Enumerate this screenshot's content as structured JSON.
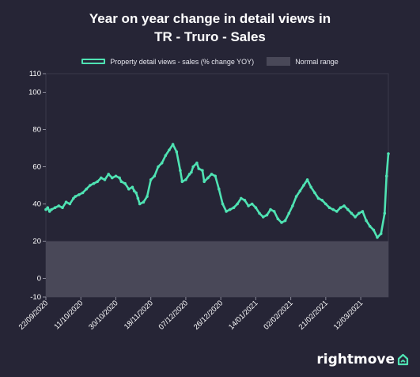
{
  "chart_data": {
    "type": "line",
    "title_lines": [
      "Year on year change in detail views in",
      "TR - Truro - Sales"
    ],
    "ylim": [
      -10,
      110
    ],
    "yticks": [
      110,
      100,
      80,
      60,
      40,
      20,
      0,
      -10
    ],
    "xlim": [
      "2020-09-22",
      "2021-03-27"
    ],
    "xtick_labels": [
      "22/09/2020",
      "11/10/2020",
      "30/10/2020",
      "18/11/2020",
      "07/12/2020",
      "26/12/2020",
      "14/01/2021",
      "02/02/2021",
      "21/02/2021",
      "12/03/2021"
    ],
    "xtick_dates": [
      "2020-09-22",
      "2020-10-11",
      "2020-10-30",
      "2020-11-18",
      "2020-12-07",
      "2020-12-26",
      "2021-01-14",
      "2021-02-02",
      "2021-02-21",
      "2021-03-12"
    ],
    "normal_range": [
      -10,
      20
    ],
    "legend_position": "top-center",
    "colors": {
      "line": "#4fe3b3",
      "range": "#494858",
      "background": "#262536"
    },
    "series": [
      {
        "name": "Property detail views - sales (% change YOY)",
        "x": [
          "2020-09-22",
          "2020-09-23",
          "2020-09-24",
          "2020-09-25",
          "2020-09-27",
          "2020-09-29",
          "2020-10-01",
          "2020-10-03",
          "2020-10-05",
          "2020-10-07",
          "2020-10-08",
          "2020-10-10",
          "2020-10-12",
          "2020-10-14",
          "2020-10-16",
          "2020-10-18",
          "2020-10-20",
          "2020-10-22",
          "2020-10-24",
          "2020-10-26",
          "2020-10-28",
          "2020-10-30",
          "2020-11-01",
          "2020-11-02",
          "2020-11-04",
          "2020-11-06",
          "2020-11-08",
          "2020-11-09",
          "2020-11-10",
          "2020-11-11",
          "2020-11-12",
          "2020-11-14",
          "2020-11-16",
          "2020-11-18",
          "2020-11-20",
          "2020-11-22",
          "2020-11-24",
          "2020-11-26",
          "2020-11-28",
          "2020-11-30",
          "2020-12-02",
          "2020-12-04",
          "2020-12-05",
          "2020-12-07",
          "2020-12-09",
          "2020-12-10",
          "2020-12-11",
          "2020-12-13",
          "2020-12-14",
          "2020-12-16",
          "2020-12-17",
          "2020-12-19",
          "2020-12-21",
          "2020-12-23",
          "2020-12-25",
          "2020-12-27",
          "2020-12-29",
          "2020-12-31",
          "2021-01-02",
          "2021-01-04",
          "2021-01-06",
          "2021-01-08",
          "2021-01-10",
          "2021-01-12",
          "2021-01-14",
          "2021-01-16",
          "2021-01-18",
          "2021-01-20",
          "2021-01-22",
          "2021-01-24",
          "2021-01-26",
          "2021-01-28",
          "2021-01-30",
          "2021-02-01",
          "2021-02-03",
          "2021-02-05",
          "2021-02-07",
          "2021-02-09",
          "2021-02-11",
          "2021-02-13",
          "2021-02-15",
          "2021-02-17",
          "2021-02-19",
          "2021-02-21",
          "2021-02-23",
          "2021-02-25",
          "2021-02-27",
          "2021-03-01",
          "2021-03-03",
          "2021-03-05",
          "2021-03-07",
          "2021-03-09",
          "2021-03-11",
          "2021-03-13",
          "2021-03-15",
          "2021-03-17",
          "2021-03-19",
          "2021-03-21",
          "2021-03-23",
          "2021-03-25",
          "2021-03-26",
          "2021-03-27"
        ],
        "y": [
          37,
          38,
          36,
          37,
          38,
          39,
          38,
          41,
          40,
          43,
          44,
          45,
          46,
          48,
          50,
          51,
          52,
          54,
          53,
          56,
          54,
          55,
          54,
          52,
          51,
          48,
          49,
          47,
          46,
          43,
          40,
          41,
          44,
          53,
          55,
          60,
          62,
          66,
          69,
          72,
          68,
          58,
          52,
          53,
          56,
          57,
          60,
          62,
          59,
          58,
          52,
          54,
          56,
          55,
          48,
          40,
          36,
          37,
          38,
          40,
          43,
          42,
          39,
          40,
          38,
          35,
          33,
          34,
          37,
          36,
          32,
          30,
          31,
          35,
          39,
          44,
          47,
          50,
          53,
          49,
          46,
          43,
          42,
          40,
          38,
          37,
          36,
          38,
          39,
          37,
          35,
          33,
          35,
          36,
          31,
          28,
          26,
          22,
          24,
          35,
          55,
          67
        ]
      }
    ]
  }
}
